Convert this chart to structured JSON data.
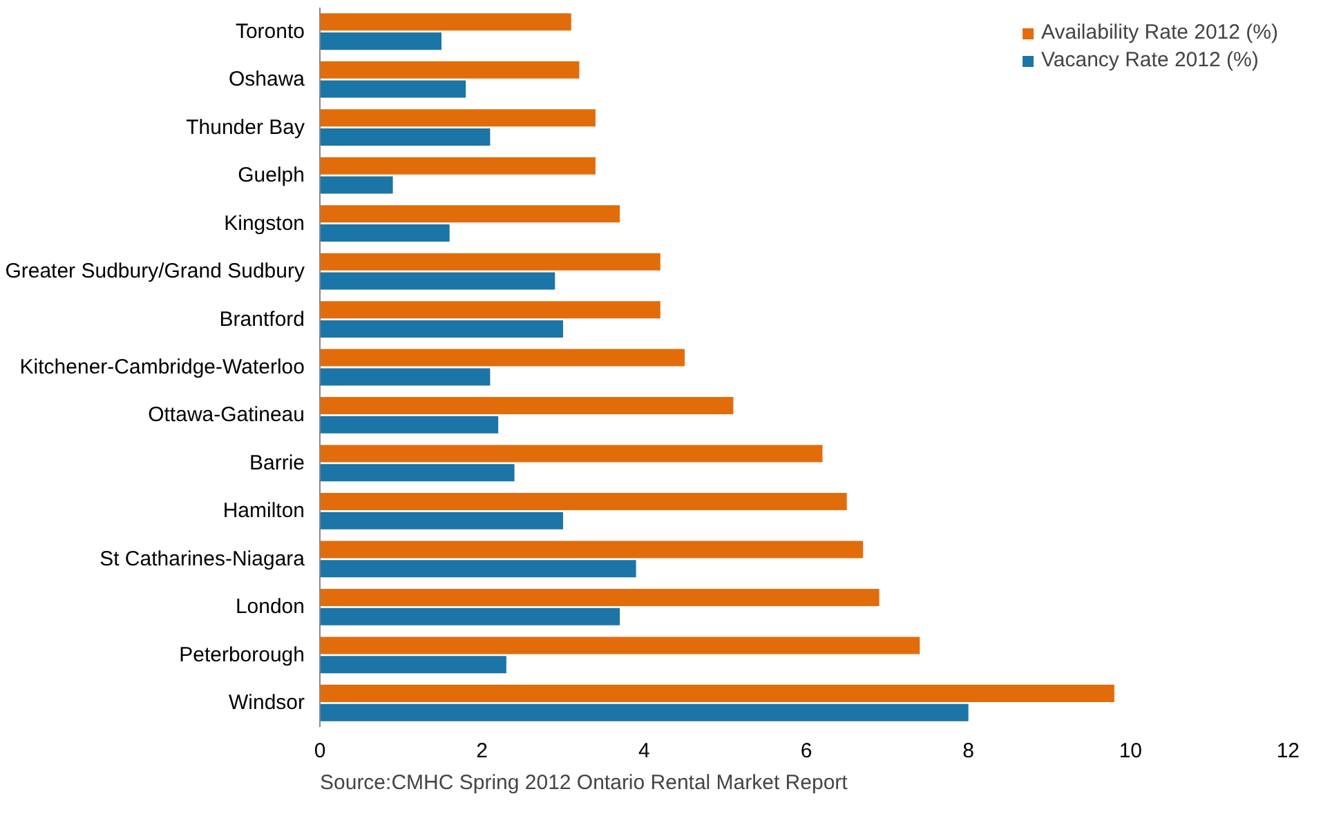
{
  "chart_data": {
    "type": "bar",
    "orientation": "horizontal",
    "categories": [
      "Toronto",
      "Oshawa",
      "Thunder Bay",
      "Guelph",
      "Kingston",
      "Greater Sudbury/Grand Sudbury",
      "Brantford",
      "Kitchener-Cambridge-Waterloo",
      "Ottawa-Gatineau",
      "Barrie",
      "Hamilton",
      "St Catharines-Niagara",
      "London",
      "Peterborough",
      "Windsor"
    ],
    "series": [
      {
        "name": "Availability Rate 2012 (%)",
        "color": "#e36c0a",
        "values": [
          3.1,
          3.2,
          3.4,
          3.4,
          3.7,
          4.2,
          4.2,
          4.5,
          5.1,
          6.2,
          6.5,
          6.7,
          6.9,
          7.4,
          9.8
        ]
      },
      {
        "name": "Vacancy Rate 2012 (%)",
        "color": "#1b75a6",
        "values": [
          1.5,
          1.8,
          2.1,
          0.9,
          1.6,
          2.9,
          3.0,
          2.1,
          2.2,
          2.4,
          3.0,
          3.9,
          3.7,
          2.3,
          8.0
        ]
      }
    ],
    "xlim": [
      0,
      12
    ],
    "xticks": [
      0,
      2,
      4,
      6,
      8,
      10,
      12
    ],
    "grid": false,
    "legend": "top right",
    "annotations": [
      "Source:CMHC Spring 2012 Ontario Rental Market Report"
    ]
  }
}
